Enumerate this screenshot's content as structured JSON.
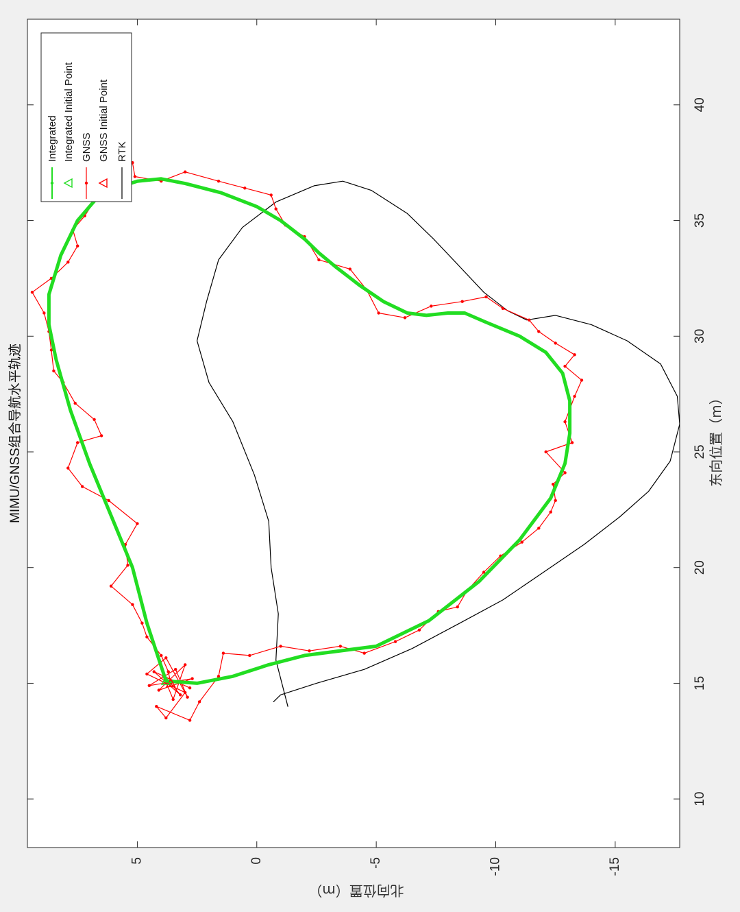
{
  "chart_data": {
    "type": "line",
    "title": "MIMU/GNSS组合导航水平轨迹",
    "xlabel": "东向位置（m）",
    "ylabel": "北向位置（m）",
    "xlim": [
      7.9,
      43.7
    ],
    "ylim": [
      -17.7,
      9.6
    ],
    "x_ticks": [
      10,
      15,
      20,
      25,
      30,
      35,
      40
    ],
    "y_ticks": [
      5,
      0,
      -5,
      -10,
      -15
    ],
    "x_tick_labels": [
      "10",
      "15",
      "20",
      "25",
      "30",
      "35",
      "40"
    ],
    "y_tick_labels": [
      "5",
      "0",
      "-5",
      "-10",
      "-15"
    ],
    "grid": false,
    "legend_position": "top-left",
    "series": [
      {
        "name": "Integrated",
        "color": "#22dd22",
        "points": [
          [
            15.1,
            3.8
          ],
          [
            17.6,
            4.6
          ],
          [
            20.0,
            5.2
          ],
          [
            22.5,
            6.2
          ],
          [
            24.5,
            7.0
          ],
          [
            26.8,
            7.8
          ],
          [
            29.0,
            8.4
          ],
          [
            30.5,
            8.7
          ],
          [
            31.8,
            8.7
          ],
          [
            33.5,
            8.2
          ],
          [
            35.0,
            7.5
          ],
          [
            36.2,
            6.5
          ],
          [
            36.7,
            5.0
          ],
          [
            36.8,
            4.0
          ],
          [
            36.6,
            3.0
          ],
          [
            36.2,
            1.5
          ],
          [
            35.6,
            0.0
          ],
          [
            35.0,
            -1.0
          ],
          [
            34.2,
            -2.0
          ],
          [
            33.6,
            -2.6
          ],
          [
            33.0,
            -3.3
          ],
          [
            32.2,
            -4.3
          ],
          [
            31.5,
            -5.3
          ],
          [
            31.0,
            -6.3
          ],
          [
            30.9,
            -7.1
          ],
          [
            31.0,
            -8.0
          ],
          [
            31.0,
            -8.7
          ],
          [
            30.6,
            -9.6
          ],
          [
            30.0,
            -11.0
          ],
          [
            29.3,
            -12.1
          ],
          [
            28.4,
            -12.8
          ],
          [
            27.2,
            -13.1
          ],
          [
            25.8,
            -13.1
          ],
          [
            24.5,
            -12.9
          ],
          [
            23.0,
            -12.3
          ],
          [
            21.2,
            -11.0
          ],
          [
            19.4,
            -9.3
          ],
          [
            17.7,
            -7.2
          ],
          [
            16.6,
            -5.0
          ],
          [
            16.2,
            -2.0
          ],
          [
            15.8,
            -0.5
          ],
          [
            15.3,
            1.0
          ],
          [
            15.0,
            2.5
          ],
          [
            15.1,
            3.8
          ]
        ]
      },
      {
        "name": "Integrated Initial Point",
        "color": "#22dd22",
        "points": [
          [
            15.1,
            3.8
          ]
        ]
      },
      {
        "name": "GNSS",
        "color": "#ff0000",
        "points": [
          [
            15.0,
            3.6
          ],
          [
            14.5,
            3.2
          ],
          [
            15.5,
            4.3
          ],
          [
            14.8,
            2.8
          ],
          [
            15.3,
            3.9
          ],
          [
            14.3,
            3.5
          ],
          [
            15.8,
            3.0
          ],
          [
            14.7,
            4.1
          ],
          [
            15.2,
            2.7
          ],
          [
            14.9,
            4.5
          ],
          [
            15.6,
            3.4
          ],
          [
            14.4,
            2.9
          ],
          [
            16.1,
            3.8
          ],
          [
            15.4,
            4.6
          ],
          [
            14.6,
            3.0
          ],
          [
            13.5,
            3.8
          ],
          [
            14.0,
            4.2
          ],
          [
            13.4,
            2.8
          ],
          [
            14.2,
            2.4
          ],
          [
            15.3,
            1.6
          ],
          [
            16.3,
            1.4
          ],
          [
            16.2,
            0.3
          ],
          [
            16.6,
            -1.0
          ],
          [
            16.4,
            -2.2
          ],
          [
            16.6,
            -3.5
          ],
          [
            16.3,
            -4.5
          ],
          [
            16.8,
            -5.8
          ],
          [
            17.3,
            -6.8
          ],
          [
            18.1,
            -7.6
          ],
          [
            18.3,
            -8.4
          ],
          [
            19.0,
            -8.8
          ],
          [
            19.8,
            -9.5
          ],
          [
            20.5,
            -10.2
          ],
          [
            21.1,
            -11.1
          ],
          [
            21.7,
            -11.8
          ],
          [
            22.4,
            -12.3
          ],
          [
            22.9,
            -12.5
          ],
          [
            23.6,
            -12.4
          ],
          [
            24.1,
            -12.9
          ],
          [
            25.0,
            -12.1
          ],
          [
            25.4,
            -13.2
          ],
          [
            26.3,
            -12.9
          ],
          [
            27.4,
            -13.3
          ],
          [
            28.1,
            -13.6
          ],
          [
            28.7,
            -12.9
          ],
          [
            29.2,
            -13.3
          ],
          [
            29.7,
            -12.5
          ],
          [
            30.2,
            -11.8
          ],
          [
            30.7,
            -11.4
          ],
          [
            31.2,
            -10.3
          ],
          [
            31.7,
            -9.6
          ],
          [
            31.5,
            -8.6
          ],
          [
            31.3,
            -7.3
          ],
          [
            30.8,
            -6.2
          ],
          [
            31.0,
            -5.1
          ],
          [
            32.0,
            -4.6
          ],
          [
            32.9,
            -3.9
          ],
          [
            33.3,
            -2.6
          ],
          [
            34.3,
            -2.0
          ],
          [
            34.8,
            -1.2
          ],
          [
            35.5,
            -0.8
          ],
          [
            36.1,
            -0.6
          ],
          [
            36.4,
            0.5
          ],
          [
            36.7,
            1.6
          ],
          [
            37.1,
            3.0
          ],
          [
            36.7,
            4.0
          ],
          [
            36.9,
            5.1
          ],
          [
            37.5,
            5.2
          ],
          [
            36.5,
            5.7
          ],
          [
            36.0,
            6.7
          ],
          [
            35.2,
            7.2
          ],
          [
            34.6,
            7.7
          ],
          [
            33.9,
            7.5
          ],
          [
            33.2,
            7.9
          ],
          [
            32.5,
            8.6
          ],
          [
            31.9,
            9.4
          ],
          [
            31.0,
            8.9
          ],
          [
            30.2,
            8.7
          ],
          [
            29.4,
            8.6
          ],
          [
            28.5,
            8.5
          ],
          [
            28.0,
            8.1
          ],
          [
            27.1,
            7.6
          ],
          [
            26.4,
            6.8
          ],
          [
            25.7,
            6.5
          ],
          [
            25.4,
            7.5
          ],
          [
            24.3,
            7.9
          ],
          [
            23.5,
            7.3
          ],
          [
            22.9,
            6.2
          ],
          [
            21.9,
            5.0
          ],
          [
            21.0,
            5.5
          ],
          [
            20.1,
            5.4
          ],
          [
            19.2,
            6.1
          ],
          [
            18.4,
            5.2
          ],
          [
            17.6,
            4.8
          ],
          [
            17.0,
            4.6
          ],
          [
            16.2,
            4.0
          ],
          [
            15.5,
            3.7
          ],
          [
            15.0,
            3.6
          ]
        ]
      },
      {
        "name": "GNSS Initial Point",
        "color": "#ff0000",
        "points": [
          [
            15.0,
            3.6
          ]
        ]
      },
      {
        "name": "RTK",
        "color": "#000000",
        "points": [
          [
            14.2,
            -0.7
          ],
          [
            14.5,
            -1.0
          ],
          [
            15.0,
            -2.5
          ],
          [
            15.6,
            -4.5
          ],
          [
            16.5,
            -6.5
          ],
          [
            17.6,
            -8.5
          ],
          [
            18.6,
            -10.3
          ],
          [
            19.8,
            -12.0
          ],
          [
            21.0,
            -13.7
          ],
          [
            22.2,
            -15.2
          ],
          [
            23.3,
            -16.4
          ],
          [
            24.6,
            -17.3
          ],
          [
            26.2,
            -17.7
          ],
          [
            27.4,
            -17.6
          ],
          [
            28.8,
            -16.9
          ],
          [
            29.8,
            -15.5
          ],
          [
            30.5,
            -14.0
          ],
          [
            30.9,
            -12.5
          ],
          [
            30.7,
            -11.3
          ],
          [
            31.1,
            -10.5
          ],
          [
            31.9,
            -9.5
          ],
          [
            33.0,
            -8.5
          ],
          [
            34.2,
            -7.4
          ],
          [
            35.3,
            -6.3
          ],
          [
            36.3,
            -4.8
          ],
          [
            36.7,
            -3.6
          ],
          [
            36.5,
            -2.4
          ],
          [
            35.8,
            -0.8
          ],
          [
            34.7,
            0.6
          ],
          [
            33.3,
            1.6
          ],
          [
            31.5,
            2.1
          ],
          [
            29.8,
            2.5
          ],
          [
            28.0,
            2.0
          ],
          [
            26.3,
            1.0
          ],
          [
            24.0,
            0.1
          ],
          [
            22.0,
            -0.5
          ],
          [
            20.0,
            -0.6
          ],
          [
            18.0,
            -0.9
          ],
          [
            16.0,
            -0.8
          ],
          [
            14.0,
            -1.3
          ]
        ]
      }
    ]
  }
}
